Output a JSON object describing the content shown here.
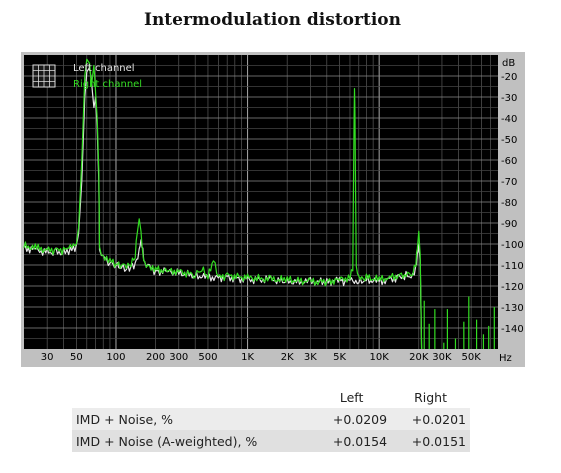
{
  "page_title": "Intermodulation distortion",
  "chart_data": {
    "type": "line",
    "title": "Intermodulation distortion",
    "xscale": "log",
    "xlim": [
      20,
      80000
    ],
    "ylim": [
      -150,
      -10
    ],
    "ylabel": "dB",
    "xlabel": "Hz",
    "grid": true,
    "legend_position": "top-left",
    "x_ticks": [
      {
        "v": 30,
        "label": "30"
      },
      {
        "v": 50,
        "label": "50"
      },
      {
        "v": 100,
        "label": "100"
      },
      {
        "v": 200,
        "label": "200"
      },
      {
        "v": 300,
        "label": "300"
      },
      {
        "v": 500,
        "label": "500"
      },
      {
        "v": 1000,
        "label": "1K"
      },
      {
        "v": 2000,
        "label": "2K"
      },
      {
        "v": 3000,
        "label": "3K"
      },
      {
        "v": 5000,
        "label": "5K"
      },
      {
        "v": 10000,
        "label": "10K"
      },
      {
        "v": 20000,
        "label": "20K"
      },
      {
        "v": 30000,
        "label": "30K"
      },
      {
        "v": 50000,
        "label": "50K"
      }
    ],
    "y_ticks": [
      {
        "v": -20,
        "label": "-20"
      },
      {
        "v": -30,
        "label": "-30"
      },
      {
        "v": -40,
        "label": "-40"
      },
      {
        "v": -50,
        "label": "-50"
      },
      {
        "v": -60,
        "label": "-60"
      },
      {
        "v": -70,
        "label": "-70"
      },
      {
        "v": -80,
        "label": "-80"
      },
      {
        "v": -90,
        "label": "-90"
      },
      {
        "v": -100,
        "label": "-100"
      },
      {
        "v": -110,
        "label": "-110"
      },
      {
        "v": -120,
        "label": "-120"
      },
      {
        "v": -130,
        "label": "-130"
      },
      {
        "v": -140,
        "label": "-140"
      }
    ],
    "series": [
      {
        "name": "Left channel",
        "color": "#e6e6e6",
        "points": [
          [
            20,
            -102
          ],
          [
            25,
            -103
          ],
          [
            30,
            -104
          ],
          [
            35,
            -104
          ],
          [
            40,
            -104
          ],
          [
            45,
            -103
          ],
          [
            50,
            -101
          ],
          [
            52,
            -95
          ],
          [
            55,
            -70
          ],
          [
            58,
            -30
          ],
          [
            60,
            -18
          ],
          [
            63,
            -16
          ],
          [
            65,
            -22
          ],
          [
            68,
            -35
          ],
          [
            70,
            -30
          ],
          [
            72,
            -45
          ],
          [
            74,
            -70
          ],
          [
            75,
            -104
          ],
          [
            80,
            -106
          ],
          [
            90,
            -109
          ],
          [
            100,
            -110
          ],
          [
            110,
            -111
          ],
          [
            120,
            -112
          ],
          [
            130,
            -111
          ],
          [
            140,
            -110
          ],
          [
            150,
            -104
          ],
          [
            155,
            -98
          ],
          [
            160,
            -104
          ],
          [
            165,
            -110
          ],
          [
            180,
            -111
          ],
          [
            200,
            -113
          ],
          [
            250,
            -113
          ],
          [
            300,
            -114
          ],
          [
            400,
            -115
          ],
          [
            500,
            -116
          ],
          [
            700,
            -116
          ],
          [
            1000,
            -117
          ],
          [
            1500,
            -117
          ],
          [
            2000,
            -118
          ],
          [
            3000,
            -118
          ],
          [
            4000,
            -118
          ],
          [
            5000,
            -117
          ],
          [
            5500,
            -118
          ],
          [
            6000,
            -117
          ],
          [
            7000,
            -118
          ],
          [
            8000,
            -117
          ],
          [
            10000,
            -118
          ],
          [
            12000,
            -117
          ],
          [
            14000,
            -116
          ],
          [
            16000,
            -115
          ],
          [
            18000,
            -116
          ],
          [
            19000,
            -112
          ],
          [
            19500,
            -106
          ],
          [
            20000,
            -100
          ],
          [
            20500,
            -108
          ],
          [
            21000,
            -150
          ]
        ]
      },
      {
        "name": "Right channel",
        "color": "#33dd22",
        "points": [
          [
            20,
            -101
          ],
          [
            25,
            -102
          ],
          [
            30,
            -103
          ],
          [
            35,
            -103
          ],
          [
            40,
            -103
          ],
          [
            45,
            -102
          ],
          [
            50,
            -100
          ],
          [
            52,
            -92
          ],
          [
            55,
            -60
          ],
          [
            58,
            -20
          ],
          [
            60,
            -12
          ],
          [
            63,
            -14
          ],
          [
            65,
            -25
          ],
          [
            68,
            -15
          ],
          [
            70,
            -28
          ],
          [
            72,
            -40
          ],
          [
            74,
            -65
          ],
          [
            75,
            -103
          ],
          [
            80,
            -107
          ],
          [
            90,
            -108
          ],
          [
            100,
            -110
          ],
          [
            110,
            -110
          ],
          [
            120,
            -111
          ],
          [
            130,
            -110
          ],
          [
            140,
            -106
          ],
          [
            145,
            -95
          ],
          [
            150,
            -88
          ],
          [
            155,
            -94
          ],
          [
            160,
            -106
          ],
          [
            165,
            -110
          ],
          [
            180,
            -112
          ],
          [
            200,
            -112
          ],
          [
            250,
            -113
          ],
          [
            300,
            -113
          ],
          [
            400,
            -115
          ],
          [
            450,
            -112
          ],
          [
            500,
            -116
          ],
          [
            550,
            -108
          ],
          [
            600,
            -116
          ],
          [
            700,
            -115
          ],
          [
            1000,
            -116
          ],
          [
            1500,
            -117
          ],
          [
            2000,
            -117
          ],
          [
            3000,
            -118
          ],
          [
            4000,
            -118
          ],
          [
            5000,
            -117
          ],
          [
            6000,
            -116
          ],
          [
            6300,
            -112
          ],
          [
            6450,
            -40
          ],
          [
            6500,
            -26
          ],
          [
            6550,
            -40
          ],
          [
            6700,
            -112
          ],
          [
            7000,
            -117
          ],
          [
            8000,
            -116
          ],
          [
            10000,
            -117
          ],
          [
            12000,
            -116
          ],
          [
            14000,
            -115
          ],
          [
            16000,
            -115
          ],
          [
            18000,
            -114
          ],
          [
            19000,
            -110
          ],
          [
            19500,
            -102
          ],
          [
            20000,
            -94
          ],
          [
            20500,
            -106
          ],
          [
            21000,
            -150
          ]
        ]
      }
    ],
    "hf_spikes": [
      {
        "x": 22000,
        "y": -127
      },
      {
        "x": 24000,
        "y": -138
      },
      {
        "x": 26500,
        "y": -131
      },
      {
        "x": 31000,
        "y": -147
      },
      {
        "x": 33000,
        "y": -131
      },
      {
        "x": 38000,
        "y": -145
      },
      {
        "x": 44000,
        "y": -137
      },
      {
        "x": 48000,
        "y": -125
      },
      {
        "x": 55000,
        "y": -136
      },
      {
        "x": 62000,
        "y": -143
      },
      {
        "x": 68000,
        "y": -139
      },
      {
        "x": 75000,
        "y": -130
      }
    ]
  },
  "results": {
    "col_left": "Left",
    "col_right": "Right",
    "rows": [
      {
        "label": "IMD + Noise, %",
        "left": "+0.0209",
        "right": "+0.0201"
      },
      {
        "label": "IMD + Noise (A-weighted), %",
        "left": "+0.0154",
        "right": "+0.0151"
      }
    ]
  }
}
